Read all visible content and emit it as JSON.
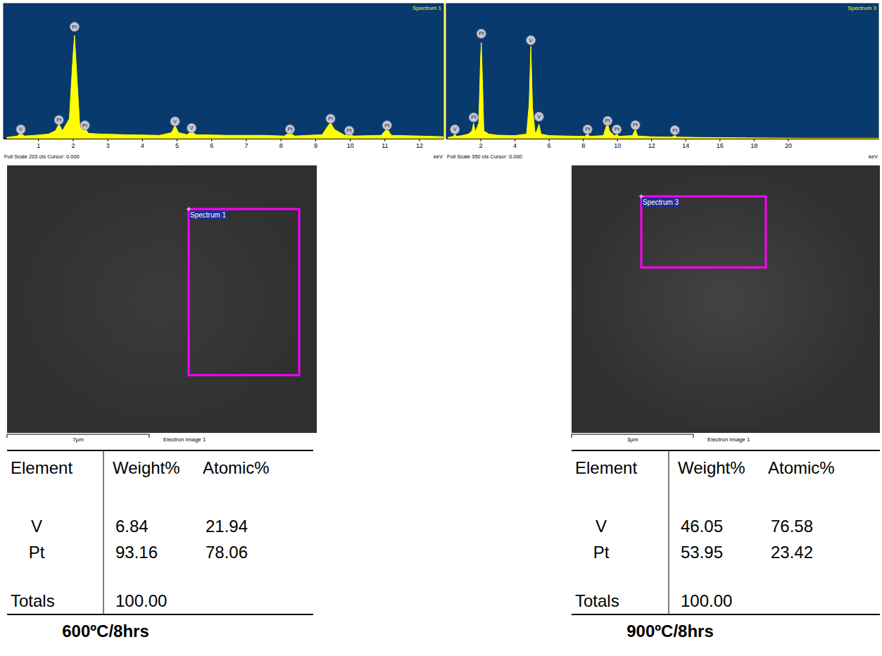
{
  "chart_data": [
    {
      "type": "area",
      "title": "Spectrum 1",
      "x_label": "keV",
      "footer": "Full Scale 203 cts Cursor: 0.000",
      "color": "#ffff00",
      "tick_labels": "x",
      "xlim": [
        0,
        12.7
      ],
      "xticks": [
        1,
        2,
        3,
        4,
        5,
        6,
        7,
        8,
        9,
        10,
        11,
        12
      ],
      "ylim": [
        0,
        203
      ],
      "x": [
        0.1,
        0.4,
        0.5,
        0.6,
        0.9,
        1.3,
        1.5,
        1.6,
        1.7,
        1.9,
        2.0,
        2.05,
        2.1,
        2.2,
        2.3,
        2.35,
        2.45,
        2.8,
        3.5,
        4.5,
        4.85,
        4.95,
        5.05,
        5.3,
        5.43,
        5.55,
        6.5,
        7.5,
        8.1,
        8.27,
        8.4,
        9.2,
        9.35,
        9.44,
        9.55,
        9.85,
        9.98,
        10.1,
        10.9,
        11.07,
        11.2,
        12,
        12.7
      ],
      "values": [
        2,
        4,
        9,
        4,
        5,
        7,
        12,
        22,
        12,
        30,
        120,
        155,
        110,
        20,
        14,
        16,
        8,
        7,
        6,
        5,
        9,
        20,
        9,
        6,
        11,
        6,
        5,
        5,
        4,
        9,
        4,
        6,
        18,
        24,
        14,
        5,
        8,
        4,
        5,
        15,
        5,
        4,
        3
      ],
      "annotations": [
        {
          "x": 0.5,
          "y": 14,
          "text": "V"
        },
        {
          "x": 1.6,
          "y": 28,
          "text": "Pt"
        },
        {
          "x": 2.05,
          "y": 168,
          "text": "Pt"
        },
        {
          "x": 2.35,
          "y": 20,
          "text": "Pt"
        },
        {
          "x": 4.95,
          "y": 26,
          "text": "V"
        },
        {
          "x": 5.43,
          "y": 16,
          "text": "V"
        },
        {
          "x": 8.27,
          "y": 14,
          "text": "Pt"
        },
        {
          "x": 9.44,
          "y": 30,
          "text": "Pt"
        },
        {
          "x": 9.98,
          "y": 12,
          "text": "Pt"
        },
        {
          "x": 11.07,
          "y": 20,
          "text": "Pt"
        }
      ]
    },
    {
      "type": "area",
      "title": "Spectrum 3",
      "x_label": "keV",
      "footer": "Full Scale 350 cts Cursor: 0.000",
      "color": "#ffff00",
      "tick_labels": "x",
      "xlim": [
        0,
        25.3
      ],
      "xticks": [
        2,
        4,
        6,
        8,
        10,
        12,
        14,
        16,
        18,
        20
      ],
      "ylim": [
        0,
        350
      ],
      "x": [
        0.1,
        0.4,
        0.5,
        0.6,
        0.9,
        1.3,
        1.5,
        1.6,
        1.7,
        1.9,
        2.0,
        2.05,
        2.1,
        2.2,
        2.5,
        3.0,
        4.0,
        4.7,
        4.85,
        4.95,
        5.05,
        5.2,
        5.3,
        5.43,
        5.55,
        6.0,
        7.0,
        8.1,
        8.27,
        8.4,
        9.2,
        9.35,
        9.44,
        9.55,
        9.85,
        9.98,
        10.1,
        10.9,
        11.07,
        11.2,
        12,
        13.2,
        13.38,
        13.5,
        15,
        18,
        21,
        25.3
      ],
      "values": [
        3,
        6,
        12,
        6,
        8,
        12,
        20,
        40,
        18,
        40,
        200,
        249,
        180,
        20,
        12,
        9,
        8,
        12,
        90,
        240,
        80,
        14,
        20,
        37,
        12,
        8,
        7,
        6,
        12,
        6,
        8,
        30,
        42,
        20,
        7,
        12,
        6,
        8,
        25,
        7,
        5,
        4,
        8,
        4,
        3,
        2,
        1,
        1
      ],
      "annotations": [
        {
          "x": 0.5,
          "y": 24,
          "text": "V"
        },
        {
          "x": 1.6,
          "y": 55,
          "text": "Pt"
        },
        {
          "x": 2.05,
          "y": 272,
          "text": "Pt"
        },
        {
          "x": 4.95,
          "y": 255,
          "text": "V"
        },
        {
          "x": 5.43,
          "y": 57,
          "text": "V"
        },
        {
          "x": 8.27,
          "y": 24,
          "text": "Pt"
        },
        {
          "x": 9.44,
          "y": 46,
          "text": "Pt"
        },
        {
          "x": 9.98,
          "y": 24,
          "text": "Pt"
        },
        {
          "x": 11.07,
          "y": 35,
          "text": "Pt"
        },
        {
          "x": 13.38,
          "y": 22,
          "text": "Pt"
        }
      ]
    }
  ],
  "images": [
    {
      "region": "Spectrum 1",
      "scale_bar": "7µm",
      "caption": "Electron Image 1"
    },
    {
      "region": "Spectrum 3",
      "scale_bar": "3µm",
      "caption": "Electron Image 1"
    }
  ],
  "tables": [
    {
      "header": [
        "Element",
        "Weight%",
        "Atomic%"
      ],
      "rows": [
        [
          "V",
          "6.84",
          "21.94"
        ],
        [
          "Pt",
          "93.16",
          "78.06"
        ]
      ],
      "totals": [
        "Totals",
        "100.00"
      ],
      "caption": "600ºC/8hrs"
    },
    {
      "header": [
        "Element",
        "Weight%",
        "Atomic%"
      ],
      "rows": [
        [
          "V",
          "46.05",
          "76.58"
        ],
        [
          "Pt",
          "53.95",
          "23.42"
        ]
      ],
      "totals": [
        "Totals",
        "100.00"
      ],
      "caption": "900ºC/8hrs"
    }
  ]
}
